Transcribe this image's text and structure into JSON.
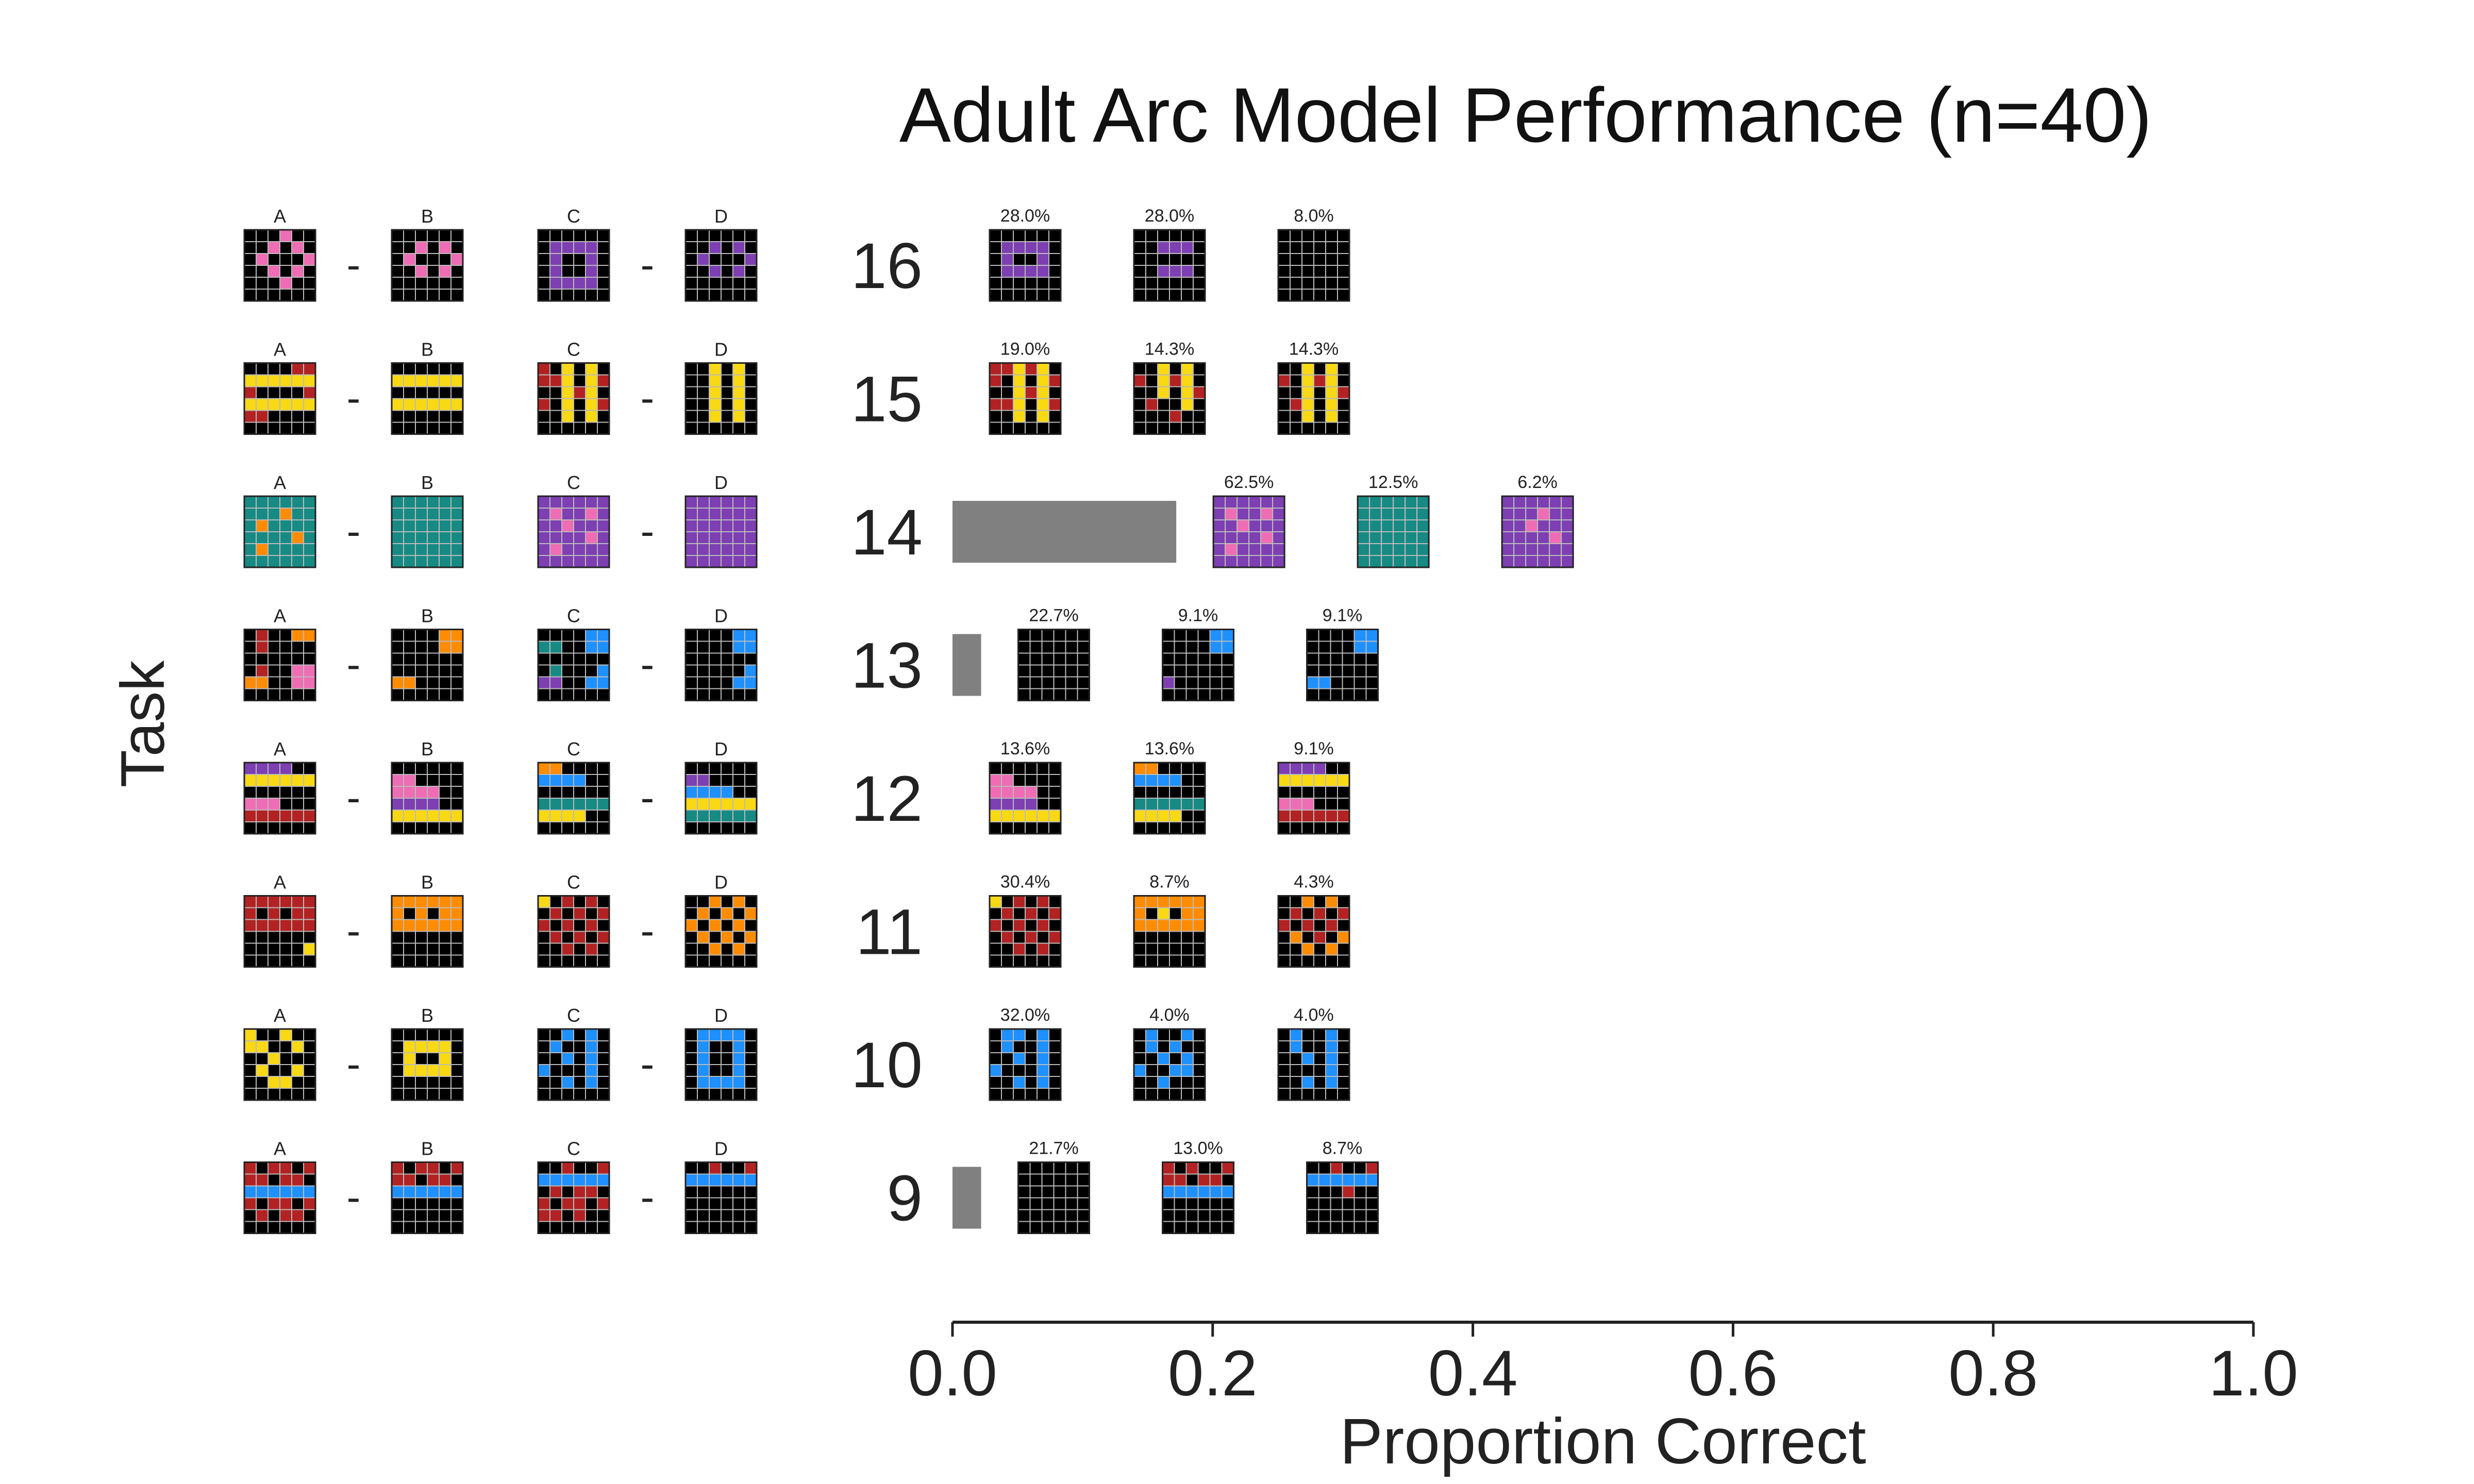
{
  "colors": {
    "text": "#222222",
    "bar": "#808080",
    "axis": "#222222",
    "grid_line": "#bbbbbb",
    "palette": {
      "k": "#000000",
      "P": "#ee6db4",
      "V": "#7d3fb2",
      "R": "#b22222",
      "Y": "#f9d814",
      "T": "#178a84",
      "O": "#ff8c00",
      "B": "#1e90ff"
    }
  },
  "chart_data": {
    "type": "bar",
    "title": "Adult Arc Model Performance (n=40)",
    "xlabel": "Proportion Correct",
    "ylabel": "Task",
    "xlim": [
      0,
      1
    ],
    "xticks": [
      "0.0",
      "0.2",
      "0.4",
      "0.6",
      "0.8",
      "1.0"
    ],
    "xtick_values": [
      0,
      0.2,
      0.4,
      0.6,
      0.8,
      1.0
    ],
    "panel_labels": [
      "A",
      "B",
      "C",
      "D"
    ],
    "separator": "-",
    "categories": [
      "16",
      "15",
      "14",
      "13",
      "12",
      "11",
      "10",
      "9"
    ],
    "values": [
      0,
      0,
      0.172,
      0.022,
      0,
      0,
      0,
      0.022
    ],
    "answer_labels": [
      [
        "28.0%",
        "28.0%",
        "8.0%"
      ],
      [
        "19.0%",
        "14.3%",
        "14.3%"
      ],
      [
        "62.5%",
        "12.5%",
        "6.2%"
      ],
      [
        "22.7%",
        "9.1%",
        "9.1%"
      ],
      [
        "13.6%",
        "13.6%",
        "9.1%"
      ],
      [
        "30.4%",
        "8.7%",
        "4.3%"
      ],
      [
        "32.0%",
        "4.0%",
        "4.0%"
      ],
      [
        "21.7%",
        "13.0%",
        "8.7%"
      ]
    ],
    "tasks": [
      {
        "task": "16",
        "panels": [
          [
            "kkkPkk",
            "kkPkPk",
            "kPkkkP",
            "kkPkPk",
            "kkkPkk",
            "kkkkkk"
          ],
          [
            "kkkkkk",
            "kkPkPk",
            "kPkkkP",
            "kkPkPk",
            "kkkkkk",
            "kkkkkk"
          ],
          [
            "kkkkkk",
            "kVVVVk",
            "kVkkVk",
            "kVkkVk",
            "kVVVVk",
            "kkkkkk"
          ],
          [
            "kkkkkk",
            "kkVkVk",
            "kVkkkV",
            "kkVkVk",
            "kkkkkk",
            "kkkkkk"
          ]
        ],
        "answers": [
          [
            "kkkkkk",
            "kVVVVk",
            "kVkkVk",
            "kVVVVk",
            "kkkkkk",
            "kkkkkk"
          ],
          [
            "kkkkkk",
            "kkVVVk",
            "kkkkkk",
            "kkVVVk",
            "kkkkkk",
            "kkkkkk"
          ],
          [
            "kkkkkk",
            "kkkkkk",
            "kkkkkk",
            "kkkkkk",
            "kkkkkk",
            "kkkkkk"
          ]
        ]
      },
      {
        "task": "15",
        "panels": [
          [
            "kkkkRR",
            "YYYYYY",
            "RkkkkR",
            "YYYYYY",
            "RRkkkk",
            "kkkkkk"
          ],
          [
            "kkkkkk",
            "YYYYYY",
            "kkkkkk",
            "YYYYYY",
            "kkkkkk",
            "kkkkkk"
          ],
          [
            "RkYkYk",
            "RRYkYR",
            "kkYRYk",
            "RkYkYR",
            "kkYkYk",
            "kkkkkk"
          ],
          [
            "kkYkYk",
            "kkYkYk",
            "kkYkYk",
            "kkYkYk",
            "kkYkYk",
            "kkkkkk"
          ]
        ],
        "answers": [
          [
            "RRYRYk",
            "RkYkYR",
            "kkYRYk",
            "RRYkYR",
            "kkYkYk",
            "kkkkkk"
          ],
          [
            "kkYkYk",
            "RkYRYk",
            "kkYkYR",
            "kRkkYk",
            "kkkRkk",
            "kkkkkk"
          ],
          [
            "kkYkYk",
            "RkYRYk",
            "kkYkYR",
            "kRYkYk",
            "kkYkYk",
            "kkkkkk"
          ]
        ]
      },
      {
        "task": "14",
        "panels": [
          [
            "TTTTTT",
            "TTTOTT",
            "TOTTTT",
            "TTTTOT",
            "TOTTTT",
            "TTTTTT"
          ],
          [
            "TTTTTT",
            "TTTTTT",
            "TTTTTT",
            "TTTTTT",
            "TTTTTT",
            "TTTTTT"
          ],
          [
            "VVVVVV",
            "VPVVPV",
            "VVPVVV",
            "VVVVPV",
            "VPVVVV",
            "VVVVVV"
          ],
          [
            "VVVVVV",
            "VVVVVV",
            "VVVVVV",
            "VVVVVV",
            "VVVVVV",
            "VVVVVV"
          ]
        ],
        "answers": [
          [
            "VVVVVV",
            "VPVVPV",
            "VVPVVV",
            "VVVVPV",
            "VPVVVV",
            "VVVVVV"
          ],
          [
            "TTTTTT",
            "TTTTTT",
            "TTTTTT",
            "TTTTTT",
            "TTTTTT",
            "TTTTTT"
          ],
          [
            "VVVVVV",
            "VVVPVV",
            "VVPVVV",
            "VVVVPV",
            "VVVVVV",
            "VVVVVV"
          ]
        ]
      },
      {
        "task": "13",
        "panels": [
          [
            "kRkkOO",
            "kRkkkk",
            "kkkkkk",
            "kRkkPP",
            "OOkkPP",
            "kkkkkk"
          ],
          [
            "kkkkOO",
            "kkkkOO",
            "kkkkkk",
            "kkkkkk",
            "OOkkkk",
            "kkkkkk"
          ],
          [
            "kkkkBB",
            "TTkkBB",
            "kkkkkk",
            "kTkkkB",
            "VVkkBB",
            "kkkkkk"
          ],
          [
            "kkkkBB",
            "kkkkBB",
            "kkkkkk",
            "kkkkkB",
            "kkkkBB",
            "kkkkkk"
          ]
        ],
        "answers": [
          [
            "kkkkkk",
            "kkkkkk",
            "kkkkkk",
            "kkkkkk",
            "kkkkkk",
            "kkkkkk"
          ],
          [
            "kkkkBB",
            "kkkkBB",
            "kkkkkk",
            "kkkkkk",
            "Vkkkkk",
            "kkkkkk"
          ],
          [
            "kkkkBB",
            "kkkkBB",
            "kkkkkk",
            "kkkkkk",
            "BBkkkk",
            "kkkkkk"
          ]
        ]
      },
      {
        "task": "12",
        "panels": [
          [
            "VVVVkk",
            "YYYYYY",
            "kkkkkk",
            "PPPkkk",
            "RRRRRR",
            "kkkkkk"
          ],
          [
            "kkkkkk",
            "PPkkkk",
            "PPPPkk",
            "VVVVkk",
            "YYYYYY",
            "kkkkkk"
          ],
          [
            "OOkkkk",
            "BBBBkk",
            "kkkkkk",
            "TTTTTT",
            "YYYYkk",
            "kkkkkk"
          ],
          [
            "kkkkkk",
            "VVkkkk",
            "BBBBkk",
            "YYYYYY",
            "TTTTTT",
            "kkkkkk"
          ]
        ],
        "answers": [
          [
            "kkkkkk",
            "PPkkkk",
            "PPPPkk",
            "VVVVkk",
            "YYYYYY",
            "kkkkkk"
          ],
          [
            "OOkkkk",
            "BBBBkk",
            "kkkkkk",
            "TTTTTT",
            "YYYYkk",
            "kkkkkk"
          ],
          [
            "VVVVkk",
            "YYYYYY",
            "kkkkkk",
            "PPPkkk",
            "RRRRRR",
            "kkkkkk"
          ]
        ]
      },
      {
        "task": "11",
        "panels": [
          [
            "RRRRRR",
            "RkRkRR",
            "RRRRRR",
            "kkkkkk",
            "kkkkkY",
            "kkkkkk"
          ],
          [
            "OOOOOO",
            "OkOkOO",
            "OOOOOO",
            "kkkkkk",
            "kkkkkk",
            "kkkkkk"
          ],
          [
            "YkRkRk",
            "kRkRkR",
            "RkRkRk",
            "kRkRkR",
            "kkRkRk",
            "kkkkkk"
          ],
          [
            "kkOkOk",
            "kOkOkO",
            "OkOkOk",
            "kOkOkO",
            "kkOkOk",
            "kkkkkk"
          ]
        ],
        "answers": [
          [
            "YkRkRk",
            "kRkRkR",
            "RkRkRk",
            "kRkRkR",
            "kkRkRk",
            "kkkkkk"
          ],
          [
            "OOOOOO",
            "OkYkOO",
            "OOOOOO",
            "kkkkkk",
            "kkkkkk",
            "kkkkkk"
          ],
          [
            "kkOkOk",
            "kRkRkR",
            "RkRkRk",
            "kOkRkO",
            "kkOkOk",
            "kkkkkk"
          ]
        ]
      },
      {
        "task": "10",
        "panels": [
          [
            "YkkYkk",
            "YYkkYk",
            "kkYkkk",
            "kYkkYk",
            "kkYYkk",
            "kkkkkk"
          ],
          [
            "kkkkkk",
            "kYYYYk",
            "kYkkYk",
            "kYYYYk",
            "kkkkkk",
            "kkkkkk"
          ],
          [
            "kkBkBk",
            "kBkkBk",
            "kkBkBk",
            "BkkkBk",
            "kkBkBk",
            "kkkkkk"
          ],
          [
            "kBBBBk",
            "kBkkBk",
            "kBkkBk",
            "kBkkBk",
            "kBBBBk",
            "kkkkkk"
          ]
        ],
        "answers": [
          [
            "kBBkBk",
            "kBkkBk",
            "kkBkBk",
            "BkkkBk",
            "kkBkBk",
            "kkkkkk"
          ],
          [
            "kBkkBk",
            "kBkBkk",
            "kkBkBk",
            "BkkBBk",
            "kkBkkk",
            "kkkkkk"
          ],
          [
            "kBkkBk",
            "kBkkBk",
            "kkBkBk",
            "kkkkBk",
            "kkBkBk",
            "kkkkkk"
          ]
        ]
      },
      {
        "task": "9",
        "panels": [
          [
            "RkRRkR",
            "RRkRRk",
            "BBBBBB",
            "RkRRkR",
            "kRkRRk",
            "kkkkkk"
          ],
          [
            "RkRRkR",
            "RRkRRk",
            "BBBBBB",
            "kkkkkk",
            "kkkkkk",
            "kkkkkk"
          ],
          [
            "kkRkkR",
            "BBBBBB",
            "kRkRRk",
            "RkRRkR",
            "RRkRkk",
            "kkkkkk"
          ],
          [
            "kkRkkR",
            "BBBBBB",
            "kkkkkk",
            "kkkkkk",
            "kkkkkk",
            "kkkkkk"
          ]
        ],
        "answers": [
          [
            "kkkkkk",
            "kkkkkk",
            "kkkkkk",
            "kkkkkk",
            "kkkkkk",
            "kkkkkk"
          ],
          [
            "RkRkkR",
            "RRkRRk",
            "BBBBBB",
            "kkkkkk",
            "kkkkkk",
            "kkkkkk"
          ],
          [
            "kkRkkR",
            "BBBBBB",
            "kkkRkk",
            "kkkkkk",
            "kkkkkk",
            "kkkkkk"
          ]
        ]
      }
    ]
  }
}
